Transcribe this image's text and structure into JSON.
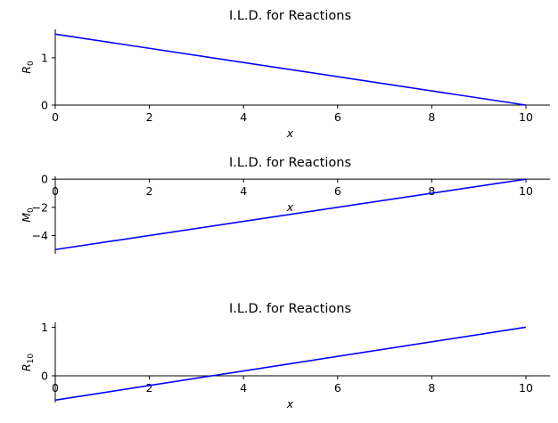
{
  "chart_data": [
    {
      "type": "line",
      "title": "I.L.D. for Reactions",
      "xlabel": "x",
      "ylabel": "R",
      "ylabel_sub": "0",
      "xlim": [
        0,
        10.5
      ],
      "ylim": [
        0,
        1.6
      ],
      "xticks": [
        0,
        2,
        4,
        6,
        8,
        10
      ],
      "yticks": [
        0,
        1
      ],
      "series": [
        {
          "x": [
            0,
            10
          ],
          "y": [
            1.5,
            0
          ],
          "color": "#0000ff"
        }
      ]
    },
    {
      "type": "line",
      "title": "I.L.D. for Reactions",
      "xlabel": "x",
      "ylabel": "M",
      "ylabel_sub": "0",
      "xlim": [
        0,
        10.5
      ],
      "ylim": [
        -5.3,
        0.2
      ],
      "xticks": [
        0,
        2,
        4,
        6,
        8,
        10
      ],
      "yticks": [
        0,
        -2,
        -4
      ],
      "series": [
        {
          "x": [
            0,
            10
          ],
          "y": [
            -5,
            0
          ],
          "color": "#0000ff"
        }
      ]
    },
    {
      "type": "line",
      "title": "I.L.D. for Reactions",
      "xlabel": "x",
      "ylabel": "R",
      "ylabel_sub": "10",
      "xlim": [
        0,
        10.5
      ],
      "ylim": [
        -0.55,
        1.1
      ],
      "xticks": [
        0,
        2,
        4,
        6,
        8,
        10
      ],
      "yticks": [
        0,
        1
      ],
      "series": [
        {
          "x": [
            0,
            10
          ],
          "y": [
            -0.5,
            1.0
          ],
          "color": "#0000ff"
        }
      ]
    }
  ]
}
